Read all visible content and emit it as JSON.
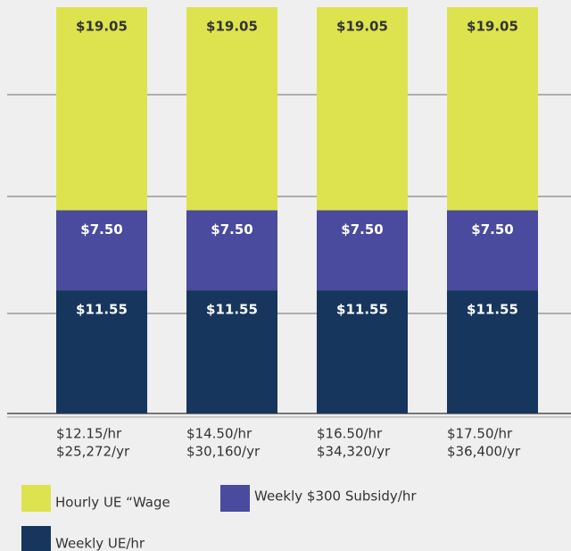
{
  "chart_data": {
    "type": "stacked-bar",
    "categories": [
      [
        "$12.15/hr",
        "$25,272/yr"
      ],
      [
        "$14.50/hr",
        "$30,160/yr"
      ],
      [
        "$16.50/hr",
        "$34,320/yr"
      ],
      [
        "$17.50/hr",
        "$36,400/yr"
      ]
    ],
    "series": [
      {
        "name": "Hourly UE “Wage",
        "color": "#dde34f",
        "values": [
          19.05,
          19.05,
          19.05,
          19.05
        ],
        "value_labels": [
          "$19.05",
          "$19.05",
          "$19.05",
          "$19.05"
        ]
      },
      {
        "name": "Weekly $300 Subsidy/hr",
        "color": "#4a4a9e",
        "values": [
          7.5,
          7.5,
          7.5,
          7.5
        ],
        "value_labels": [
          "$7.50",
          "$7.50",
          "$7.50",
          "$7.50"
        ]
      },
      {
        "name": "Weekly UE/hr",
        "color": "#17365e",
        "values": [
          11.55,
          11.55,
          11.55,
          11.55
        ],
        "value_labels": [
          "$11.55",
          "$11.55",
          "$11.55",
          "$11.55"
        ]
      }
    ],
    "ylim": [
      0,
      38.1
    ]
  }
}
